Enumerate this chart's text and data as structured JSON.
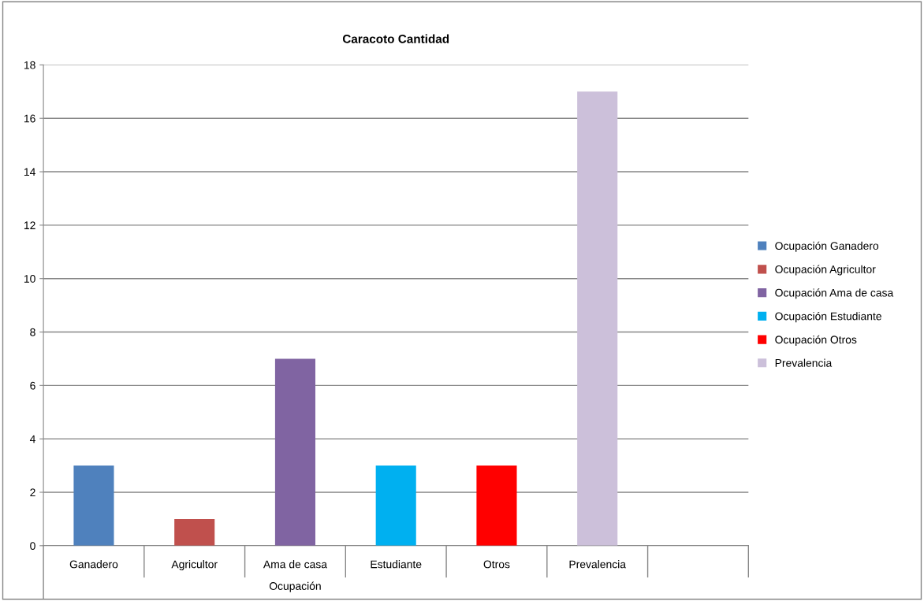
{
  "chart_data": {
    "type": "bar",
    "title": "Caracoto Cantidad",
    "categories": [
      "Ganadero",
      "Agricultor",
      "Ama de casa",
      "Estudiante",
      "Otros",
      "Prevalencia",
      null
    ],
    "series": [
      {
        "name": "Ocupación Ganadero",
        "color": "#4f81bd",
        "values": [
          3,
          null,
          null,
          null,
          null,
          null,
          null
        ]
      },
      {
        "name": "Ocupación Agricultor",
        "color": "#c0504d",
        "values": [
          null,
          1,
          null,
          null,
          null,
          null,
          null
        ]
      },
      {
        "name": "Ocupación Ama de casa",
        "color": "#8064a2",
        "values": [
          null,
          null,
          7,
          null,
          null,
          null,
          null
        ]
      },
      {
        "name": "Ocupación Estudiante",
        "color": "#00b0f0",
        "values": [
          null,
          null,
          null,
          3,
          null,
          null,
          null
        ]
      },
      {
        "name": "Ocupación Otros",
        "color": "#ff0000",
        "values": [
          null,
          null,
          null,
          null,
          3,
          null,
          null
        ]
      },
      {
        "name": "Prevalencia",
        "color": "#ccc0da",
        "values": [
          null,
          null,
          null,
          null,
          null,
          17,
          null
        ]
      }
    ],
    "annotations": [
      "Ocupación"
    ],
    "ylim": [
      0,
      18
    ],
    "yticks": [
      0,
      2,
      4,
      6,
      8,
      10,
      12,
      14,
      16,
      18
    ],
    "grid": "y",
    "legend": "right"
  }
}
